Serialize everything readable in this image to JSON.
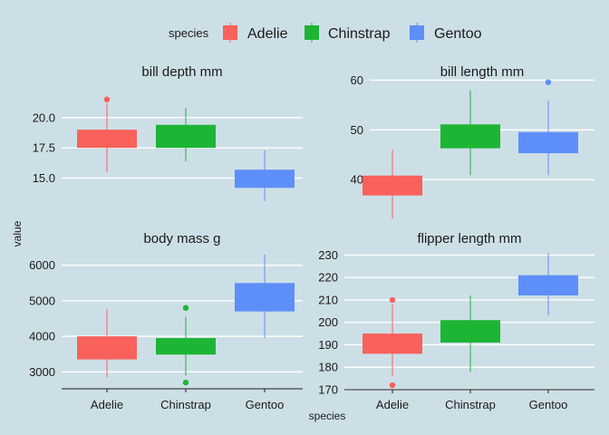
{
  "chart_data": {
    "type": "boxplot",
    "background": "#cddfe6",
    "gridline_color": "#ffffff",
    "legend": {
      "title": "species",
      "position": "top",
      "items": [
        {
          "label": "Adelie",
          "color": "#f8615c"
        },
        {
          "label": "Chinstrap",
          "color": "#1cb534"
        },
        {
          "label": "Gentoo",
          "color": "#5e8ff8"
        }
      ]
    },
    "xlabel": "species",
    "ylabel": "value",
    "categories": [
      "Adelie",
      "Chinstrap",
      "Gentoo"
    ],
    "facets": [
      {
        "title": "bill_depth_mm",
        "ylim": [
          12.5,
          22.6
        ],
        "yticks": [
          15.0,
          17.5,
          20.0
        ],
        "ytick_labels": [
          "15.0",
          "17.5",
          "20.0"
        ],
        "boxes": [
          {
            "category": "Adelie",
            "lower_whisker": 15.5,
            "q1": 17.5,
            "median": 18.4,
            "q3": 19.0,
            "upper_whisker": 21.2,
            "outliers": [
              21.5
            ]
          },
          {
            "category": "Chinstrap",
            "lower_whisker": 16.4,
            "q1": 17.5,
            "median": 18.45,
            "q3": 19.4,
            "upper_whisker": 20.8,
            "outliers": []
          },
          {
            "category": "Gentoo",
            "lower_whisker": 13.1,
            "q1": 14.2,
            "median": 15.0,
            "q3": 15.7,
            "upper_whisker": 17.3,
            "outliers": []
          }
        ]
      },
      {
        "title": "bill_length_mm",
        "ylim": [
          32,
          61
        ],
        "yticks": [
          40,
          50,
          60
        ],
        "ytick_labels": [
          "40",
          "50",
          "60"
        ],
        "boxes": [
          {
            "category": "Adelie",
            "lower_whisker": 32.1,
            "q1": 36.8,
            "median": 38.8,
            "q3": 40.8,
            "upper_whisker": 46.0,
            "outliers": []
          },
          {
            "category": "Chinstrap",
            "lower_whisker": 40.9,
            "q1": 46.3,
            "median": 49.55,
            "q3": 51.1,
            "upper_whisker": 58.0,
            "outliers": []
          },
          {
            "category": "Gentoo",
            "lower_whisker": 40.9,
            "q1": 45.3,
            "median": 47.3,
            "q3": 49.55,
            "upper_whisker": 55.9,
            "outliers": [
              59.6
            ]
          }
        ]
      },
      {
        "title": "body_mass_g",
        "ylim": [
          2550,
          6400
        ],
        "yticks": [
          3000,
          4000,
          5000,
          6000
        ],
        "ytick_labels": [
          "3000",
          "4000",
          "5000",
          "6000"
        ],
        "boxes": [
          {
            "category": "Adelie",
            "lower_whisker": 2850,
            "q1": 3350,
            "median": 3700,
            "q3": 4000,
            "upper_whisker": 4775,
            "outliers": []
          },
          {
            "category": "Chinstrap",
            "lower_whisker": 2900,
            "q1": 3487,
            "median": 3700,
            "q3": 3950,
            "upper_whisker": 4550,
            "outliers": [
              4800,
              2700
            ]
          },
          {
            "category": "Gentoo",
            "lower_whisker": 3950,
            "q1": 4700,
            "median": 5000,
            "q3": 5500,
            "upper_whisker": 6300,
            "outliers": []
          }
        ]
      },
      {
        "title": "flipper_length_mm",
        "ylim": [
          170,
          233
        ],
        "yticks": [
          170,
          180,
          190,
          200,
          210,
          220,
          230
        ],
        "ytick_labels": [
          "170",
          "180",
          "190",
          "200",
          "210",
          "220",
          "230"
        ],
        "boxes": [
          {
            "category": "Adelie",
            "lower_whisker": 176,
            "q1": 186,
            "median": 190,
            "q3": 195,
            "upper_whisker": 208,
            "outliers": [
              210,
              172
            ]
          },
          {
            "category": "Chinstrap",
            "lower_whisker": 178,
            "q1": 191,
            "median": 196,
            "q3": 201,
            "upper_whisker": 212,
            "outliers": []
          },
          {
            "category": "Gentoo",
            "lower_whisker": 203,
            "q1": 212,
            "median": 216,
            "q3": 221,
            "upper_whisker": 231,
            "outliers": []
          }
        ]
      }
    ]
  }
}
